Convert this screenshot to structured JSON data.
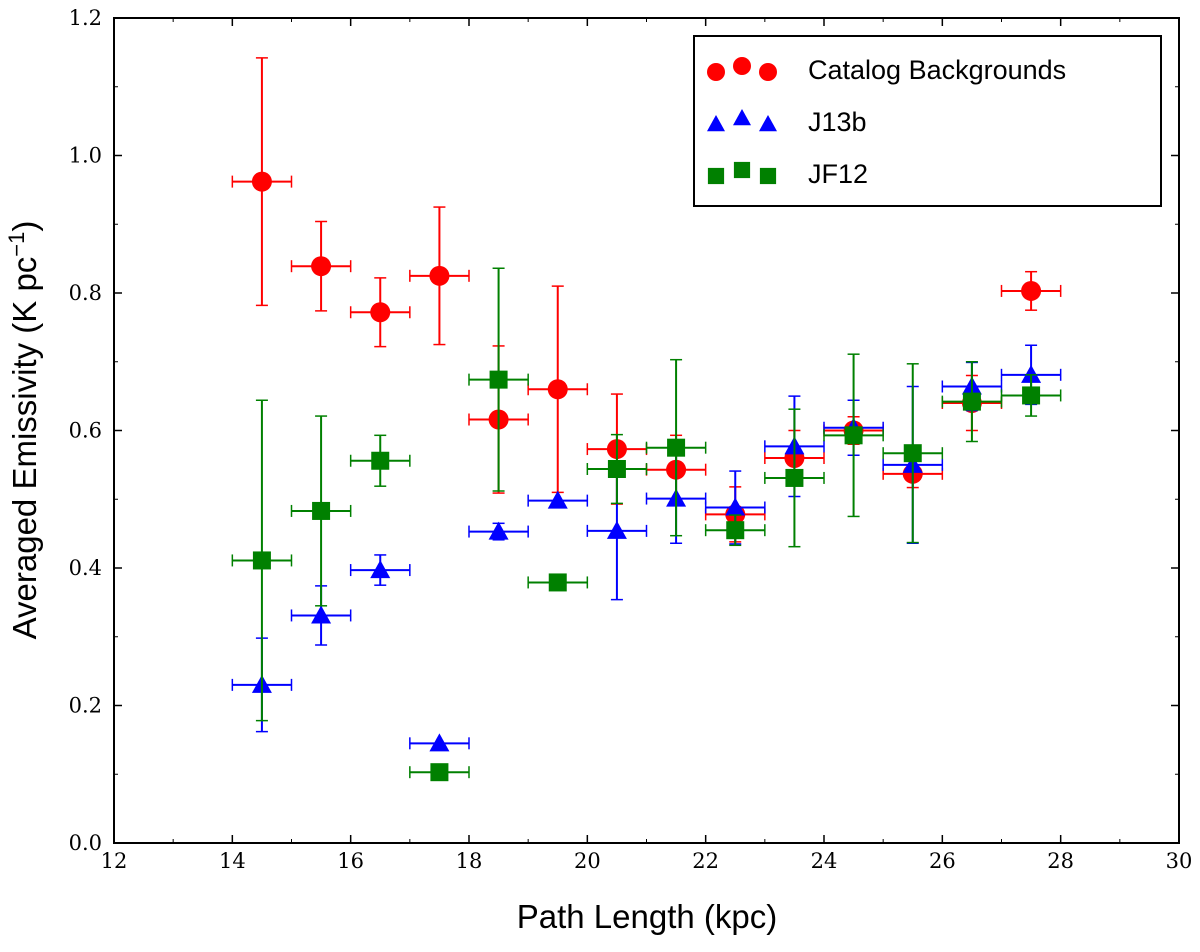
{
  "chart_data": {
    "type": "scatter",
    "title": "",
    "xlabel": "Path Length (kpc)",
    "ylabel": "Averaged Emissivity (K pc",
    "ylabel_sup": "−1",
    "ylabel_close": ")",
    "xlim": [
      12,
      30
    ],
    "ylim": [
      0.0,
      1.2
    ],
    "xticks": [
      "12",
      "14",
      "16",
      "18",
      "20",
      "22",
      "24",
      "26",
      "28",
      "30"
    ],
    "yticks": [
      "0.0",
      "0.2",
      "0.4",
      "0.6",
      "0.8",
      "1.0",
      "1.2"
    ],
    "x_error_halfwidth": 0.5,
    "legend_position": "top-right",
    "series": [
      {
        "name": "Catalog Backgrounds",
        "marker": "circle",
        "color": "#ff0000",
        "x": [
          14.5,
          15.5,
          16.5,
          17.5,
          18.5,
          19.5,
          20.5,
          21.5,
          22.5,
          23.5,
          24.5,
          25.5,
          26.5,
          27.5
        ],
        "y": [
          0.962,
          0.839,
          0.772,
          0.825,
          0.616,
          0.66,
          0.573,
          0.543,
          0.478,
          0.56,
          0.6,
          0.537,
          0.64,
          0.803
        ],
        "yerr": [
          0.18,
          0.065,
          0.05,
          0.1,
          0.107,
          0.15,
          0.08,
          0.05,
          0.04,
          0.04,
          0.02,
          0.02,
          0.04,
          0.028
        ]
      },
      {
        "name": "J13b",
        "marker": "triangle",
        "color": "#0000ff",
        "x": [
          14.5,
          15.5,
          16.5,
          17.5,
          18.5,
          19.5,
          20.5,
          21.5,
          22.5,
          23.5,
          24.5,
          25.5,
          26.5,
          27.5
        ],
        "y": [
          0.23,
          0.331,
          0.397,
          0.145,
          0.453,
          0.498,
          0.454,
          0.501,
          0.488,
          0.577,
          0.604,
          0.55,
          0.664,
          0.681
        ],
        "yerr": [
          0.068,
          0.043,
          0.022,
          0.0,
          0.012,
          0.0,
          0.1,
          0.065,
          0.053,
          0.073,
          0.04,
          0.114,
          0.035,
          0.043
        ]
      },
      {
        "name": "JF12",
        "marker": "square",
        "color": "#008000",
        "x": [
          14.5,
          15.5,
          16.5,
          17.5,
          18.5,
          19.5,
          20.5,
          21.5,
          22.5,
          23.5,
          24.5,
          25.5,
          26.5,
          27.5
        ],
        "y": [
          0.411,
          0.483,
          0.556,
          0.103,
          0.674,
          0.379,
          0.544,
          0.575,
          0.455,
          0.531,
          0.593,
          0.567,
          0.642,
          0.651
        ],
        "yerr": [
          0.233,
          0.138,
          0.037,
          0.0,
          0.162,
          0.0,
          0.05,
          0.128,
          0.022,
          0.1,
          0.118,
          0.13,
          0.058,
          0.03
        ]
      }
    ]
  }
}
